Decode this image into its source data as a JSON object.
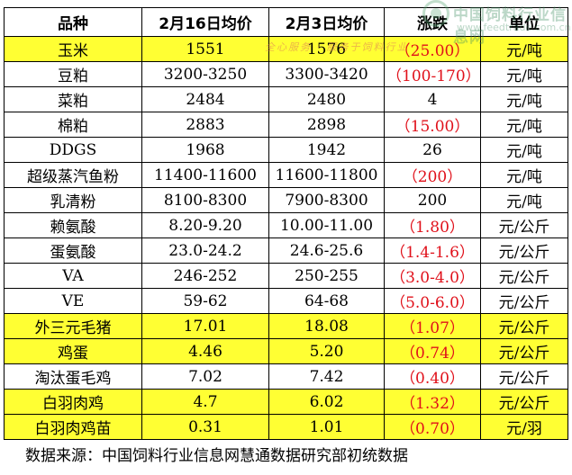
{
  "watermark": {
    "title": "中国饲料行业信息网",
    "url": "www.feedtrade.com.cn",
    "slogan": "全心服务 · 服务于饲料行业"
  },
  "table": {
    "headers": [
      "品种",
      "2月16日均价",
      "2月3日均价",
      "涨跌",
      "单位"
    ],
    "rows": [
      {
        "name": "玉米",
        "p1": "1551",
        "p2": "1576",
        "change": "（25.00）",
        "unit": "元/吨",
        "highlight": true,
        "negative": true
      },
      {
        "name": "豆粕",
        "p1": "3200-3250",
        "p2": "3300-3420",
        "change": "（100-170）",
        "unit": "元/吨",
        "highlight": false,
        "negative": true
      },
      {
        "name": "菜粕",
        "p1": "2484",
        "p2": "2480",
        "change": "4",
        "unit": "元/吨",
        "highlight": false,
        "negative": false
      },
      {
        "name": "棉粕",
        "p1": "2883",
        "p2": "2898",
        "change": "（15.00）",
        "unit": "元/吨",
        "highlight": false,
        "negative": true
      },
      {
        "name": "DDGS",
        "p1": "1968",
        "p2": "1942",
        "change": "26",
        "unit": "元/吨",
        "highlight": false,
        "negative": false
      },
      {
        "name": "超级蒸汽鱼粉",
        "p1": "11400-11600",
        "p2": "11600-11800",
        "change": "（200）",
        "unit": "元/吨",
        "highlight": false,
        "negative": true
      },
      {
        "name": "乳清粉",
        "p1": "8100-8300",
        "p2": "7900-8300",
        "change": "200",
        "unit": "元/吨",
        "highlight": false,
        "negative": false
      },
      {
        "name": "赖氨酸",
        "p1": "8.20-9.20",
        "p2": "10.00-11.00",
        "change": "（1.80）",
        "unit": "元/公斤",
        "highlight": false,
        "negative": true
      },
      {
        "name": "蛋氨酸",
        "p1": "23.0-24.2",
        "p2": "24.6-25.6",
        "change": "（1.4-1.6）",
        "unit": "元/公斤",
        "highlight": false,
        "negative": true
      },
      {
        "name": "VA",
        "p1": "246-252",
        "p2": "250-255",
        "change": "（3.0-4.0）",
        "unit": "元/公斤",
        "highlight": false,
        "negative": true
      },
      {
        "name": "VE",
        "p1": "59-62",
        "p2": "64-68",
        "change": "（5.0-6.0）",
        "unit": "元/公斤",
        "highlight": false,
        "negative": true
      },
      {
        "name": "外三元毛猪",
        "p1": "17.01",
        "p2": "18.08",
        "change": "（1.07）",
        "unit": "元/公斤",
        "highlight": true,
        "negative": true
      },
      {
        "name": "鸡蛋",
        "p1": "4.46",
        "p2": "5.20",
        "change": "（0.74）",
        "unit": "元/公斤",
        "highlight": true,
        "negative": true
      },
      {
        "name": "淘汰蛋毛鸡",
        "p1": "7.02",
        "p2": "7.42",
        "change": "（0.40）",
        "unit": "元/公斤",
        "highlight": false,
        "negative": true
      },
      {
        "name": "白羽肉鸡",
        "p1": "4.7",
        "p2": "6.02",
        "change": "（1.32）",
        "unit": "元/公斤",
        "highlight": true,
        "negative": true
      },
      {
        "name": "白羽肉鸡苗",
        "p1": "0.31",
        "p2": "1.01",
        "change": "（0.70）",
        "unit": "元/羽",
        "highlight": true,
        "negative": true
      }
    ]
  },
  "footer": "数据来源：中国饲料行业信息网慧通数据研究部初统数据",
  "colors": {
    "highlight": "#ffff33",
    "negative": "#e0101a"
  }
}
